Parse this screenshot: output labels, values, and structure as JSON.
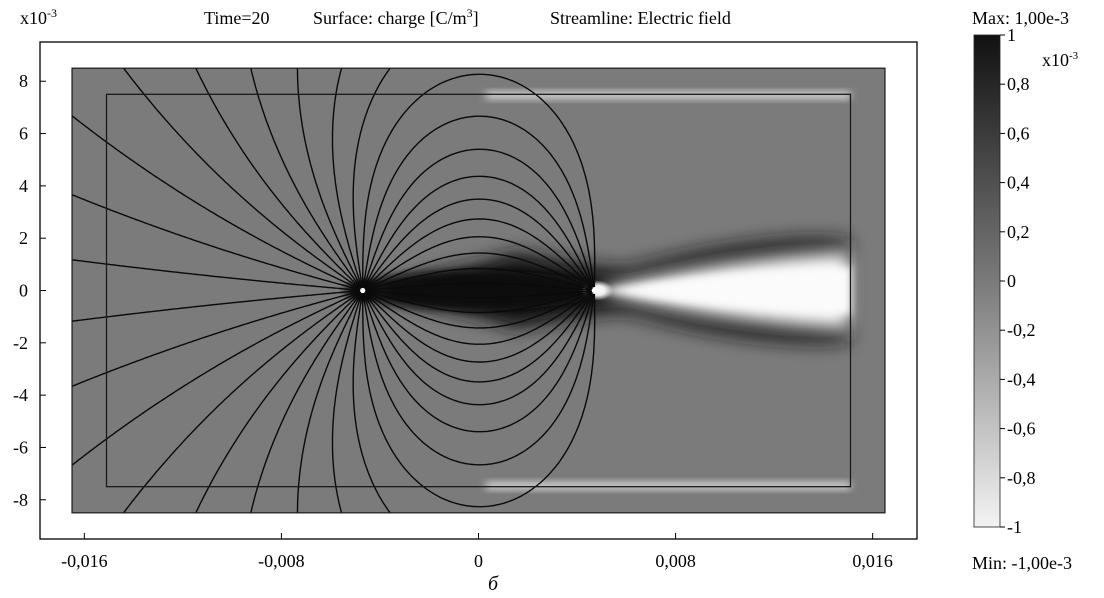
{
  "header": {
    "axis_multiplier": "x10",
    "axis_multiplier_exp": "-3",
    "time_label": "Time=20",
    "surface_label": "Surface: charge [C/m",
    "surface_label_exp": "3",
    "surface_label_end": "]",
    "streamline_label": "Streamline: Electric field"
  },
  "caption": "б",
  "colorbar": {
    "max_label": "Max: 1,00e-3",
    "min_label": "Min: -1,00e-3",
    "multiplier": "x10",
    "multiplier_exp": "-3",
    "ticks": [
      {
        "value": 1,
        "label": "1"
      },
      {
        "value": 0.8,
        "label": "0,8"
      },
      {
        "value": 0.6,
        "label": "0,6"
      },
      {
        "value": 0.4,
        "label": "0,4"
      },
      {
        "value": 0.2,
        "label": "0,2"
      },
      {
        "value": 0,
        "label": "0"
      },
      {
        "value": -0.2,
        "label": "-0,2"
      },
      {
        "value": -0.4,
        "label": "-0,4"
      },
      {
        "value": -0.6,
        "label": "-0,6"
      },
      {
        "value": -0.8,
        "label": "-0,8"
      },
      {
        "value": -1,
        "label": "-1"
      }
    ],
    "range": [
      -1,
      1
    ],
    "colors": {
      "high": "#111111",
      "mid": "#7a7a7a",
      "low": "#f2f2f2"
    }
  },
  "chart_data": {
    "type": "heatmap",
    "title": "",
    "xlabel": "",
    "ylabel": "",
    "xlim": [
      -0.0178,
      0.0178
    ],
    "ylim": [
      -0.0095,
      0.0095
    ],
    "x_ticks": [
      {
        "value": -0.016,
        "label": "-0,016"
      },
      {
        "value": -0.008,
        "label": "-0,008"
      },
      {
        "value": 0,
        "label": "0"
      },
      {
        "value": 0.008,
        "label": "0,008"
      },
      {
        "value": 0.016,
        "label": "0,016"
      }
    ],
    "y_ticks": [
      {
        "value": 8,
        "label": "8"
      },
      {
        "value": 6,
        "label": "6"
      },
      {
        "value": 4,
        "label": "4"
      },
      {
        "value": 2,
        "label": "2"
      },
      {
        "value": 0,
        "label": "0"
      },
      {
        "value": -2,
        "label": "-2"
      },
      {
        "value": -4,
        "label": "-4"
      },
      {
        "value": -6,
        "label": "-6"
      },
      {
        "value": -8,
        "label": "-8"
      }
    ],
    "domain": {
      "x": [
        -0.0165,
        0.0165
      ],
      "y": [
        -0.0085,
        0.0085
      ]
    },
    "inner_boundary": {
      "x": [
        -0.0151,
        0.0151
      ],
      "y": [
        -0.0075,
        0.0075
      ]
    },
    "electrodes": [
      {
        "x": -0.0047,
        "y": 0,
        "polarity": "positive"
      },
      {
        "x": 0.0047,
        "y": 0,
        "polarity": "negative"
      }
    ],
    "background_charge": -0.05,
    "streamlines": "electric field",
    "grid": false,
    "colors": {
      "domain_fill": "#7b7b7b",
      "streamline": "#0a0a0a",
      "frame": "#000000"
    }
  }
}
